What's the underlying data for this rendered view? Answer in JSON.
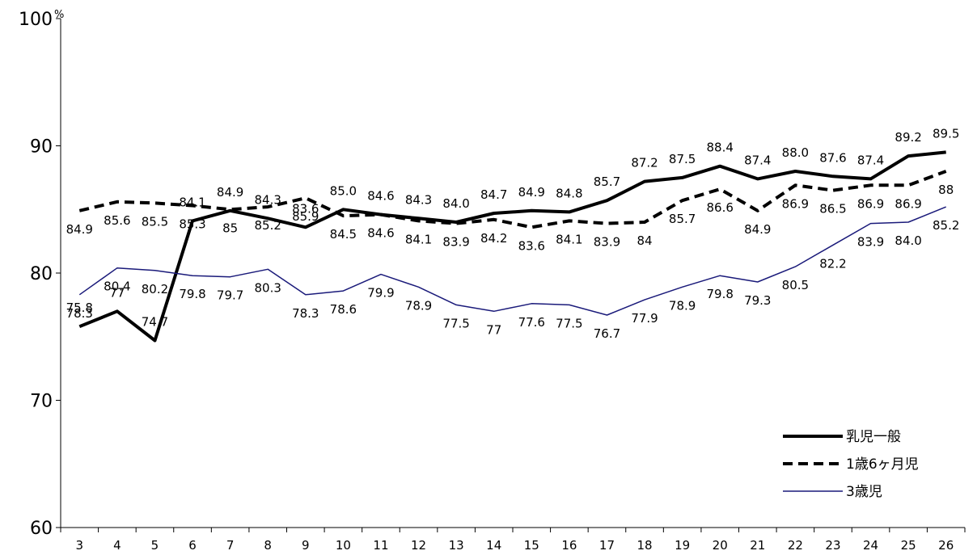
{
  "chart_data": {
    "type": "line",
    "title": "",
    "xlabel": "",
    "ylabel": "",
    "y_unit": "%",
    "ylim": [
      60,
      100
    ],
    "yticks": [
      60,
      70,
      80,
      90,
      100
    ],
    "grid": false,
    "legend_position": "bottom-right",
    "x": [
      "3",
      "4",
      "5",
      "6",
      "7",
      "8",
      "9",
      "10",
      "11",
      "12",
      "13",
      "14",
      "15",
      "16",
      "17",
      "18",
      "19",
      "20",
      "21",
      "22",
      "23",
      "24",
      "25",
      "26"
    ],
    "series": [
      {
        "name": "乳児一般",
        "style": "solid-thick",
        "color": "#000000",
        "values": [
          75.8,
          77,
          74.7,
          84.1,
          84.9,
          84.3,
          83.6,
          85.0,
          84.6,
          84.3,
          84.0,
          84.7,
          84.9,
          84.8,
          85.7,
          87.2,
          87.5,
          88.4,
          87.4,
          88.0,
          87.6,
          87.4,
          89.2,
          89.5
        ],
        "labels": [
          "75.8",
          "77",
          "74.7",
          "84.1",
          "84.9",
          "84.3",
          "83.6",
          "85.0",
          "84.6",
          "84.3",
          "84.0",
          "84.7",
          "84.9",
          "84.8",
          "85.7",
          "87.2",
          "87.5",
          "88.4",
          "87.4",
          "88.0",
          "87.6",
          "87.4",
          "89.2",
          "89.5"
        ]
      },
      {
        "name": "1歳6ヶ月児",
        "style": "dashed-thick",
        "color": "#000000",
        "values": [
          84.9,
          85.6,
          85.5,
          85.3,
          85,
          85.2,
          85.9,
          84.5,
          84.6,
          84.1,
          83.9,
          84.2,
          83.6,
          84.1,
          83.9,
          84,
          85.7,
          86.6,
          84.9,
          86.9,
          86.5,
          86.9,
          86.9,
          88
        ],
        "labels": [
          "84.9",
          "85.6",
          "85.5",
          "85.3",
          "85",
          "85.2",
          "85.9",
          "84.5",
          "84.6",
          "84.1",
          "83.9",
          "84.2",
          "83.6",
          "84.1",
          "83.9",
          "84",
          "85.7",
          "86.6",
          "84.9",
          "86.9",
          "86.5",
          "86.9",
          "86.9",
          "88"
        ]
      },
      {
        "name": "3歳児",
        "style": "solid-thin",
        "color": "#1a1a7a",
        "values": [
          78.3,
          80.4,
          80.2,
          79.8,
          79.7,
          80.3,
          78.3,
          78.6,
          79.9,
          78.9,
          77.5,
          77,
          77.6,
          77.5,
          76.7,
          77.9,
          78.9,
          79.8,
          79.3,
          80.5,
          82.2,
          83.9,
          84.0,
          85.2
        ],
        "labels": [
          "78.3",
          "80.4",
          "80.2",
          "79.8",
          "79.7",
          "80.3",
          "78.3",
          "78.6",
          "79.9",
          "78.9",
          "77.5",
          "77",
          "77.6",
          "77.5",
          "76.7",
          "77.9",
          "78.9",
          "79.8",
          "79.3",
          "80.5",
          "82.2",
          "83.9",
          "84.0",
          "85.2"
        ]
      }
    ]
  }
}
